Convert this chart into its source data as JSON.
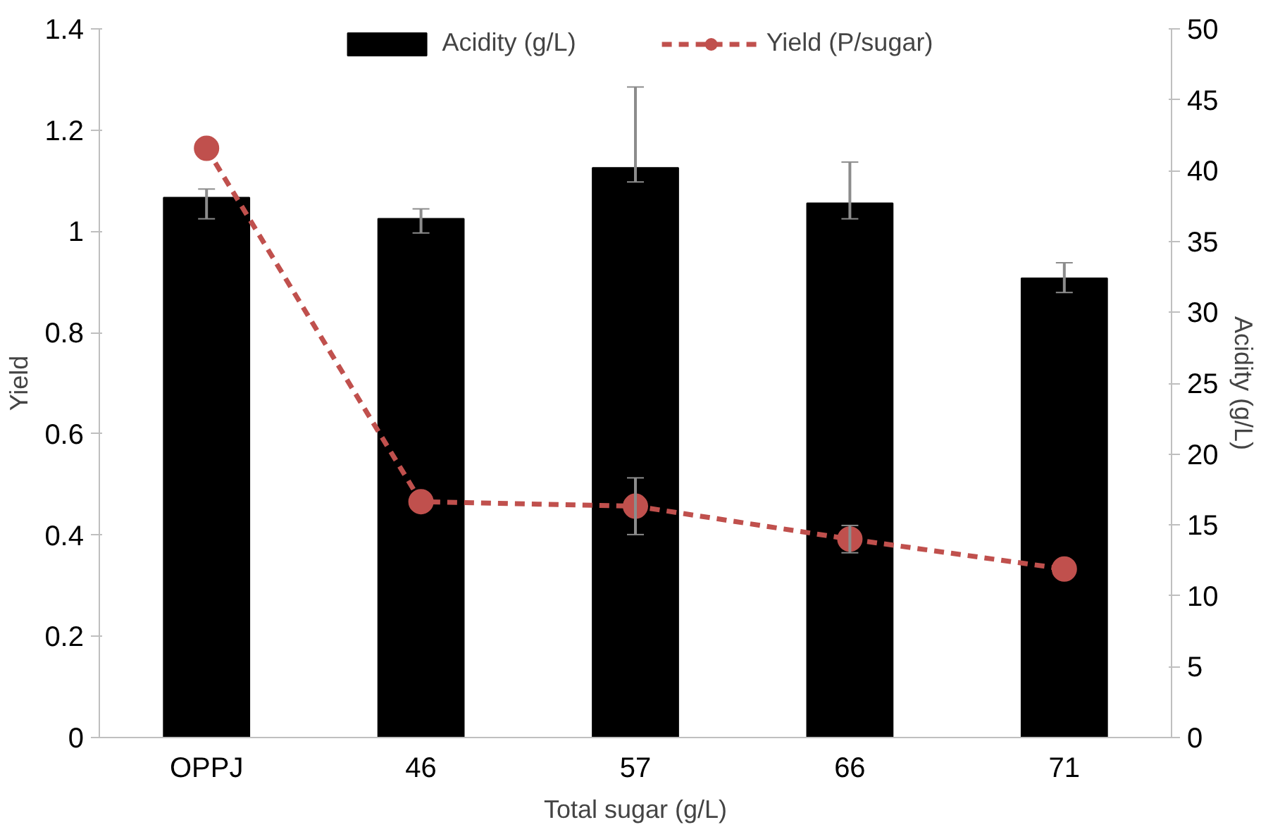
{
  "chart_data": {
    "type": "bar",
    "categories": [
      "OPPJ",
      "46",
      "57",
      "66",
      "71"
    ],
    "xlabel": "Total sugar (g/L)",
    "ylabel": "Yield",
    "y2label": "Acidity (g/L)",
    "ylim": [
      0,
      1.4
    ],
    "yticks": [
      0,
      0.2,
      0.4,
      0.6,
      0.8,
      1,
      1.2,
      1.4
    ],
    "y2lim": [
      0,
      50
    ],
    "y2ticks": [
      0,
      5,
      10,
      15,
      20,
      25,
      30,
      35,
      40,
      45,
      50
    ],
    "series": [
      {
        "name": "Acidity (g/L)",
        "axis": "y2",
        "color": "#000000",
        "values": [
          38.1,
          36.6,
          40.2,
          37.7,
          32.4
        ],
        "errors": [
          [
            36.6,
            38.7
          ],
          [
            35.6,
            37.3
          ],
          [
            39.2,
            45.9
          ],
          [
            36.6,
            40.6
          ],
          [
            31.4,
            33.5
          ]
        ]
      },
      {
        "name": "Yield (P/sugar)",
        "type": "line",
        "color": "#c0504d",
        "marker": "circle",
        "line_style": "dashed",
        "values": [
          1.164,
          0.466,
          0.457,
          0.392,
          0.333
        ],
        "errors": [
          null,
          null,
          0.056,
          0.027,
          null
        ]
      }
    ],
    "legend": "top",
    "grid": false
  }
}
